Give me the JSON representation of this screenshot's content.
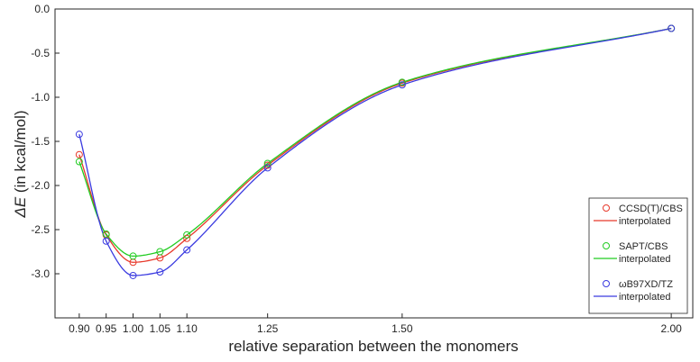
{
  "chart_data": {
    "type": "line",
    "title": "",
    "xlabel": "relative separation between the monomers",
    "ylabel_symbol": "ΔE",
    "ylabel_rest": " (in kcal/mol)",
    "xlim": [
      0.855,
      2.04
    ],
    "ylim": [
      -3.5,
      0.0
    ],
    "xticks": [
      0.9,
      0.95,
      1.0,
      1.05,
      1.1,
      1.25,
      1.5,
      2.0
    ],
    "xtick_labels": [
      "0.90",
      "0.95",
      "1.00",
      "1.05",
      "1.10",
      "1.25",
      "1.50",
      "2.00"
    ],
    "yticks": [
      0.0,
      -0.5,
      -1.0,
      -1.5,
      -2.0,
      -2.5,
      -3.0
    ],
    "ytick_labels": [
      "0.0",
      "-0.5",
      "-1.0",
      "-1.5",
      "-2.0",
      "-2.5",
      "-3.0"
    ],
    "grid": false,
    "legend_position": "bottom-right",
    "x": [
      0.9,
      0.95,
      1.0,
      1.05,
      1.1,
      1.25,
      1.5,
      2.0
    ],
    "series": [
      {
        "name": "CCSD(T)/CBS",
        "curve_label": "interpolated",
        "color": "#e8392b",
        "values": [
          -1.65,
          -2.56,
          -2.87,
          -2.82,
          -2.6,
          -1.77,
          -0.84,
          -0.22
        ]
      },
      {
        "name": "SAPT/CBS",
        "curve_label": "interpolated",
        "color": "#22cc22",
        "values": [
          -1.73,
          -2.55,
          -2.8,
          -2.75,
          -2.56,
          -1.75,
          -0.83,
          -0.22
        ]
      },
      {
        "name": "ωB97XD/TZ",
        "curve_label": "interpolated",
        "color": "#3a3ae0",
        "values": [
          -1.42,
          -2.63,
          -3.02,
          -2.98,
          -2.73,
          -1.8,
          -0.86,
          -0.22
        ]
      }
    ]
  }
}
